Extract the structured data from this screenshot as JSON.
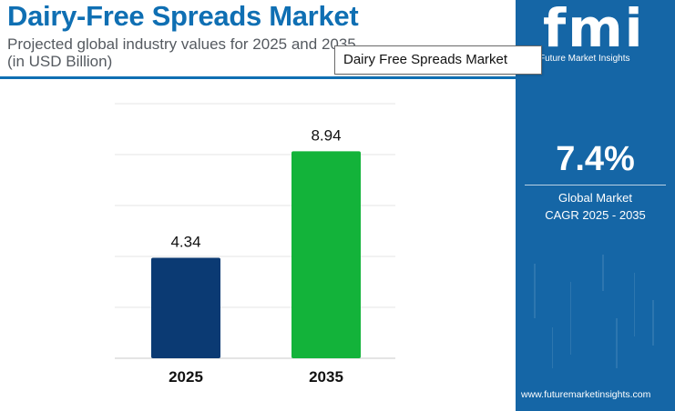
{
  "header": {
    "title": "Dairy-Free Spreads Market",
    "subtitle_line1": "Projected global industry values for 2025 and 2035",
    "subtitle_line2": "(in USD Billion)"
  },
  "tooltip": {
    "text": "Dairy Free Spreads Market"
  },
  "sidebar": {
    "logo_text": "fmi",
    "company_name": "Future Market Insights",
    "cagr_value": "7.4%",
    "cagr_label_line1": "Global Market",
    "cagr_label_line2": "CAGR 2025 - 2035",
    "website": "www.futuremarketinsights.com"
  },
  "colors": {
    "brand_blue": "#0f6fb3",
    "panel_blue": "#1566a6",
    "bar_2025": "#0b3a73",
    "bar_2035": "#13b33a"
  },
  "chart_data": {
    "type": "bar",
    "categories": [
      "2025",
      "2035"
    ],
    "values": [
      4.34,
      8.94
    ],
    "value_labels": [
      "4.34",
      "8.94"
    ],
    "colors": [
      "#0b3a73",
      "#13b33a"
    ],
    "ylim": [
      0,
      11
    ],
    "grid": true,
    "title": "",
    "xlabel": "",
    "ylabel": ""
  }
}
